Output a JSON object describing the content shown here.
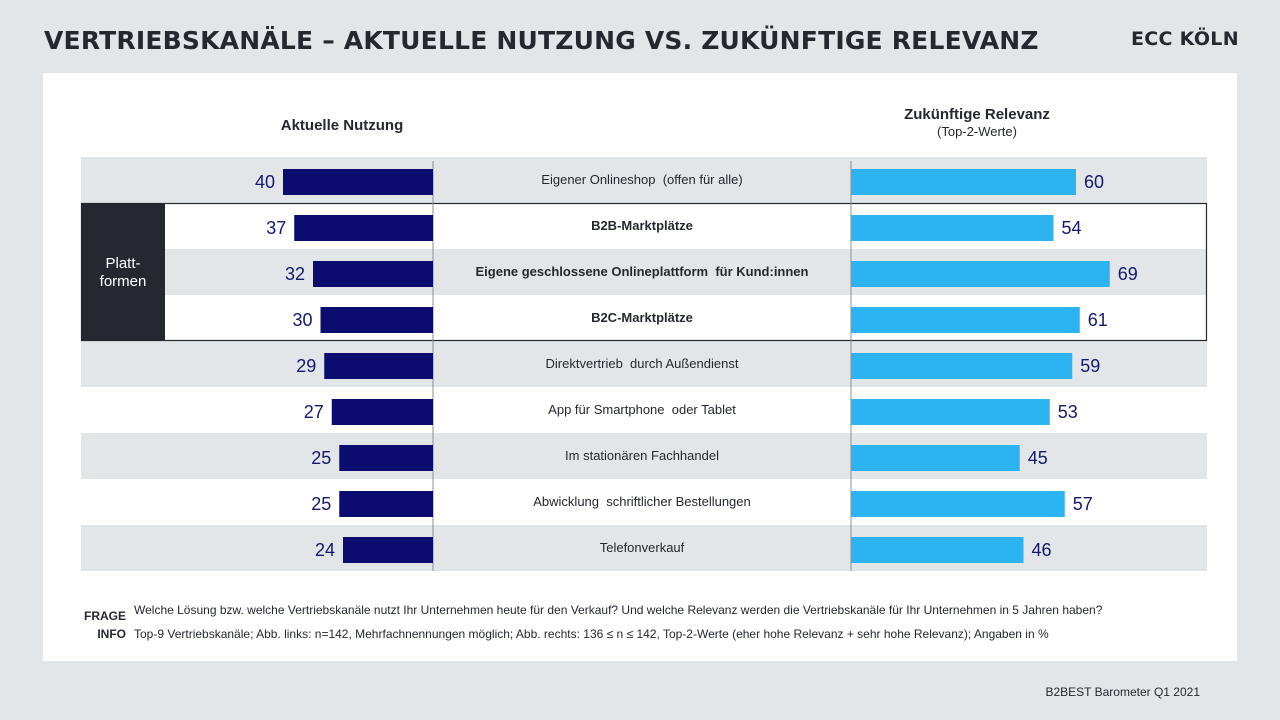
{
  "header": {
    "title": "VERTRIEBSKANÄLE – AKTUELLE NUTZUNG VS. ZUKÜNFTIGE RELEVANZ",
    "logo": "ECC KÖLN"
  },
  "column_headers": {
    "left": "Aktuelle Nutzung",
    "right_title": "Zukünftige Relevanz",
    "right_subtitle": "(Top-2-Werte)"
  },
  "group_label": "Platt-\nformen",
  "notes": {
    "frage_label": "FRAGE",
    "frage_text": "Welche Lösung bzw. welche Vertriebskanäle nutzt Ihr Unternehmen heute für den Verkauf? Und welche Relevanz werden die Vertriebskanäle für Ihr Unternehmen in 5 Jahren haben?",
    "info_label": "INFO",
    "info_text": "Top-9 Vertriebskanäle; Abb. links: n=142, Mehrfachnennungen möglich; Abb. rechts: 136 ≤ n ≤ 142, Top-2-Werte (eher hohe Relevanz + sehr hohe Relevanz); Angaben in %"
  },
  "source": "B2BEST Barometer Q1 2021",
  "colors": {
    "left_bar": "#0b0c6e",
    "right_bar": "#2cb4f2",
    "stripe": "#e3e6e9",
    "group_box": "#25282f",
    "value_text": "#14186c",
    "label_text": "#25282f"
  },
  "chart_data": {
    "type": "bar",
    "categories": [
      "Eigener Onlineshop  (offen für alle)",
      "B2B-Marktplätze",
      "Eigene geschlossene Onlineplattform  für Kund:innen",
      "B2C-Marktplätze",
      "Direktvertrieb  durch Außendienst",
      "App für Smartphone  oder Tablet",
      "Im stationären Fachhandel",
      "Abwicklung  schriftlicher Bestellungen",
      "Telefonverkauf"
    ],
    "bold_categories": [
      1,
      2,
      3
    ],
    "group": {
      "label": "Platt-\nformen",
      "rows": [
        1,
        2,
        3
      ]
    },
    "series": [
      {
        "name": "Aktuelle Nutzung",
        "values": [
          40,
          37,
          32,
          30,
          29,
          27,
          25,
          25,
          24
        ]
      },
      {
        "name": "Zukünftige Relevanz",
        "values": [
          60,
          54,
          69,
          61,
          59,
          53,
          45,
          57,
          46
        ]
      }
    ],
    "xlim": [
      0,
      70
    ],
    "grid": false
  }
}
